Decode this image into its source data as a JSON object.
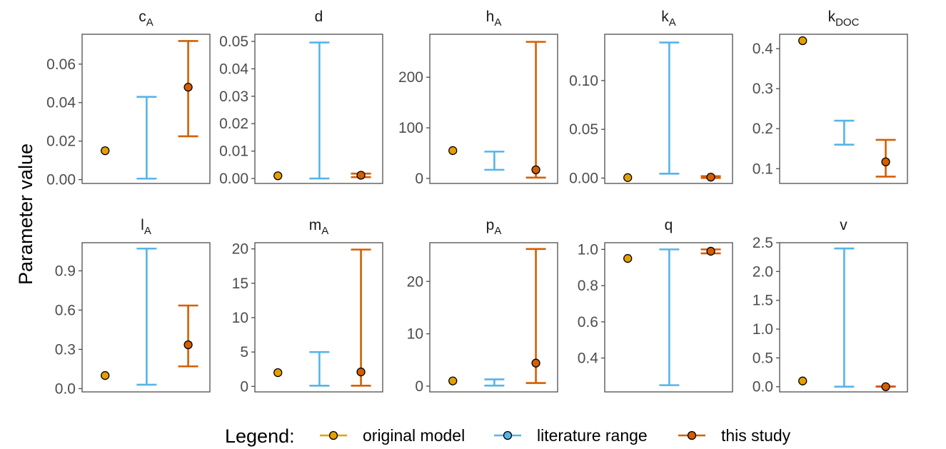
{
  "chart_data": {
    "type": "errorbar",
    "ylabel": "Parameter value",
    "legend": {
      "title": "Legend:",
      "placement": "bottom",
      "entries": [
        {
          "key": "original",
          "label": "original model",
          "color": "#E69F00"
        },
        {
          "key": "literature",
          "label": "literature range",
          "color": "#56B4E9"
        },
        {
          "key": "study",
          "label": "this study",
          "color": "#D55E00"
        }
      ]
    },
    "colors": {
      "original": "#E69F00",
      "literature": "#56B4E9",
      "study": "#D55E00"
    },
    "x_categories": [
      "original",
      "literature",
      "study"
    ],
    "panels": [
      {
        "id": "cA",
        "title": "c",
        "sub": "A",
        "ylim": [
          -0.002,
          0.0755
        ],
        "ticks": [
          0,
          0.02,
          0.04,
          0.06
        ],
        "tick_labels": [
          "0.00",
          "0.02",
          "0.04",
          "0.06"
        ],
        "original": 0.015,
        "literature": [
          0.0005,
          0.043
        ],
        "study": {
          "point": 0.048,
          "range": [
            0.0225,
            0.072
          ]
        }
      },
      {
        "id": "d",
        "title": "d",
        "sub": "",
        "ylim": [
          -0.0018,
          0.0526
        ],
        "ticks": [
          0,
          0.01,
          0.02,
          0.03,
          0.04,
          0.05
        ],
        "tick_labels": [
          "0.00",
          "0.01",
          "0.02",
          "0.03",
          "0.04",
          "0.05"
        ],
        "original": 0.001,
        "literature": [
          0.0,
          0.0496
        ],
        "study": {
          "point": 0.0012,
          "range": [
            0.0005,
            0.0018
          ]
        }
      },
      {
        "id": "hA",
        "title": "h",
        "sub": "A",
        "ylim": [
          -10,
          285
        ],
        "ticks": [
          0,
          100,
          200
        ],
        "tick_labels": [
          "0",
          "100",
          "200"
        ],
        "original": 55,
        "literature": [
          17,
          53
        ],
        "study": {
          "point": 17,
          "range": [
            1.5,
            270
          ]
        }
      },
      {
        "id": "kA",
        "title": "k",
        "sub": "A",
        "ylim": [
          -0.0055,
          0.1475
        ],
        "ticks": [
          0,
          0.05,
          0.1
        ],
        "tick_labels": [
          "0.00",
          "0.05",
          "0.10"
        ],
        "original": 0.0005,
        "literature": [
          0.0045,
          0.139
        ],
        "study": {
          "point": 0.001,
          "range": [
            0.0001,
            0.002
          ]
        }
      },
      {
        "id": "kDOC",
        "title": "k",
        "sub": "DOC",
        "ylim": [
          0.063,
          0.436
        ],
        "ticks": [
          0.1,
          0.2,
          0.3,
          0.4
        ],
        "tick_labels": [
          "0.1",
          "0.2",
          "0.3",
          "0.4"
        ],
        "original": 0.42,
        "literature": [
          0.16,
          0.22
        ],
        "study": {
          "point": 0.117,
          "range": [
            0.08,
            0.172
          ]
        }
      },
      {
        "id": "lA",
        "title": "l",
        "sub": "A",
        "ylim": [
          -0.025,
          1.115
        ],
        "ticks": [
          0,
          0.3,
          0.6,
          0.9
        ],
        "tick_labels": [
          "0.0",
          "0.3",
          "0.6",
          "0.9"
        ],
        "original": 0.1,
        "literature": [
          0.03,
          1.07
        ],
        "study": {
          "point": 0.335,
          "range": [
            0.17,
            0.635
          ]
        }
      },
      {
        "id": "mA",
        "title": "m",
        "sub": "A",
        "ylim": [
          -0.8,
          20.9
        ],
        "ticks": [
          0,
          5,
          10,
          15,
          20
        ],
        "tick_labels": [
          "0",
          "5",
          "10",
          "15",
          "20"
        ],
        "original": 2.0,
        "literature": [
          0.1,
          5.0
        ],
        "study": {
          "point": 2.1,
          "range": [
            0.1,
            19.9
          ]
        }
      },
      {
        "id": "pA",
        "title": "p",
        "sub": "A",
        "ylim": [
          -1.1,
          27.4
        ],
        "ticks": [
          0,
          10,
          20
        ],
        "tick_labels": [
          "0",
          "10",
          "20"
        ],
        "original": 1.0,
        "literature": [
          0.1,
          1.3
        ],
        "study": {
          "point": 4.4,
          "range": [
            0.6,
            26.2
          ]
        }
      },
      {
        "id": "q",
        "title": "q",
        "sub": "",
        "ylim": [
          0.213,
          1.037
        ],
        "ticks": [
          0.4,
          0.6,
          0.8,
          1.0
        ],
        "tick_labels": [
          "0.4",
          "0.6",
          "0.8",
          "1.0"
        ],
        "original": 0.95,
        "literature": [
          0.25,
          1.0
        ],
        "study": {
          "point": 0.99,
          "range": [
            0.978,
            1.0
          ]
        }
      },
      {
        "id": "v",
        "title": "v",
        "sub": "",
        "ylim": [
          -0.09,
          2.5
        ],
        "ticks": [
          0,
          0.5,
          1.0,
          1.5,
          2.0,
          2.5
        ],
        "tick_labels": [
          "0.0",
          "0.5",
          "1.0",
          "1.5",
          "2.0",
          "2.5"
        ],
        "original": 0.1,
        "literature": [
          0.0,
          2.4
        ],
        "study": {
          "point": 0.0,
          "range": [
            0.0,
            0.005
          ]
        }
      }
    ]
  }
}
